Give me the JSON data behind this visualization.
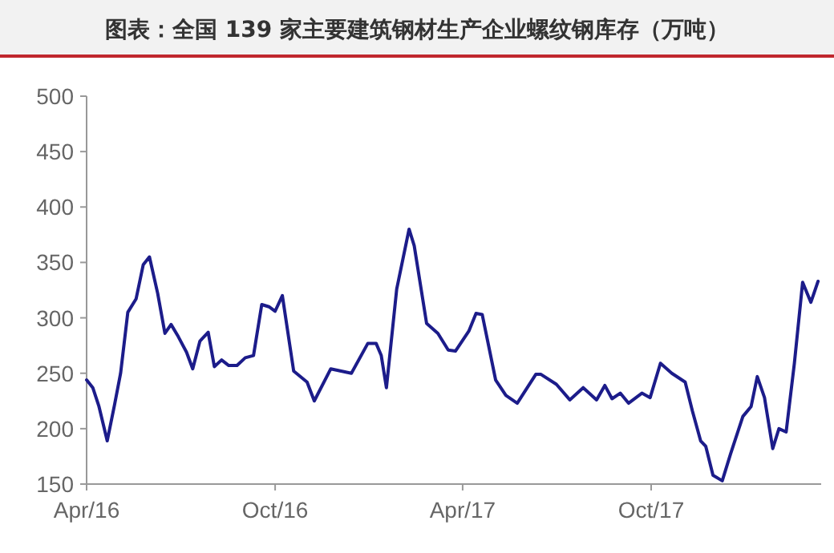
{
  "chart_data": {
    "type": "line",
    "title": "图表：全国 139 家主要建筑钢材生产企业螺纹钢库存（万吨）",
    "x": [
      "2016-04-01",
      "2016-04-07",
      "2016-04-13",
      "2016-04-21",
      "2016-04-28",
      "2016-05-04",
      "2016-05-11",
      "2016-05-19",
      "2016-05-26",
      "2016-06-01",
      "2016-06-09",
      "2016-06-16",
      "2016-06-22",
      "2016-06-29",
      "2016-07-07",
      "2016-07-13",
      "2016-07-20",
      "2016-07-28",
      "2016-08-03",
      "2016-08-10",
      "2016-08-17",
      "2016-08-25",
      "2016-09-02",
      "2016-09-10",
      "2016-09-18",
      "2016-09-25",
      "2016-10-01",
      "2016-10-08",
      "2016-10-19",
      "2016-11-01",
      "2016-11-08",
      "2016-11-24",
      "2016-12-14",
      "2016-12-30",
      "2017-01-07",
      "2017-01-12",
      "2017-01-17",
      "2017-01-27",
      "2017-02-08",
      "2017-02-13",
      "2017-02-25",
      "2017-03-08",
      "2017-03-18",
      "2017-03-25",
      "2017-04-07",
      "2017-04-14",
      "2017-04-20",
      "2017-05-03",
      "2017-05-13",
      "2017-05-24",
      "2017-06-11",
      "2017-06-16",
      "2017-07-01",
      "2017-07-14",
      "2017-07-27",
      "2017-08-09",
      "2017-08-17",
      "2017-08-24",
      "2017-09-01",
      "2017-09-09",
      "2017-09-22",
      "2017-09-30",
      "2017-10-10",
      "2017-10-21",
      "2017-11-03",
      "2017-11-10",
      "2017-11-18",
      "2017-11-23",
      "2017-11-30",
      "2017-12-09",
      "2017-12-17",
      "2017-12-29",
      "2018-01-06",
      "2018-01-12",
      "2018-01-19",
      "2018-01-27",
      "2018-02-02",
      "2018-02-09",
      "2018-02-17",
      "2018-02-25",
      "2018-03-05",
      "2018-03-12"
    ],
    "series": [
      {
        "color": "#1c1c8a",
        "values": [
          244,
          237,
          220,
          189,
          221,
          250,
          305,
          317,
          348,
          355,
          322,
          286,
          294,
          283,
          269,
          254,
          279,
          287,
          256,
          262,
          257,
          257,
          264,
          266,
          312,
          310,
          306,
          320,
          252,
          242,
          225,
          254,
          250,
          277,
          277,
          266,
          237,
          326,
          380,
          365,
          295,
          286,
          271,
          270,
          288,
          304,
          303,
          244,
          230,
          223,
          249,
          249,
          240,
          226,
          237,
          226,
          239,
          227,
          232,
          223,
          232,
          228,
          259,
          250,
          242,
          216,
          189,
          184,
          158,
          153,
          177,
          211,
          220,
          247,
          228,
          182,
          200,
          197,
          259,
          332,
          314,
          333
        ]
      }
    ],
    "xlim": [
      "2016-04-01",
      "2018-03-15"
    ],
    "xticks": [
      {
        "value": "2016-04-01",
        "label": "Apr/16"
      },
      {
        "value": "2016-10-01",
        "label": "Oct/16"
      },
      {
        "value": "2017-04-01",
        "label": "Apr/17"
      },
      {
        "value": "2017-10-01",
        "label": "Oct/17"
      }
    ],
    "ylim": [
      150,
      500
    ],
    "yticks": [
      150,
      200,
      250,
      300,
      350,
      400,
      450,
      500
    ],
    "grid": false,
    "marker": "none",
    "line_style": "solid"
  }
}
